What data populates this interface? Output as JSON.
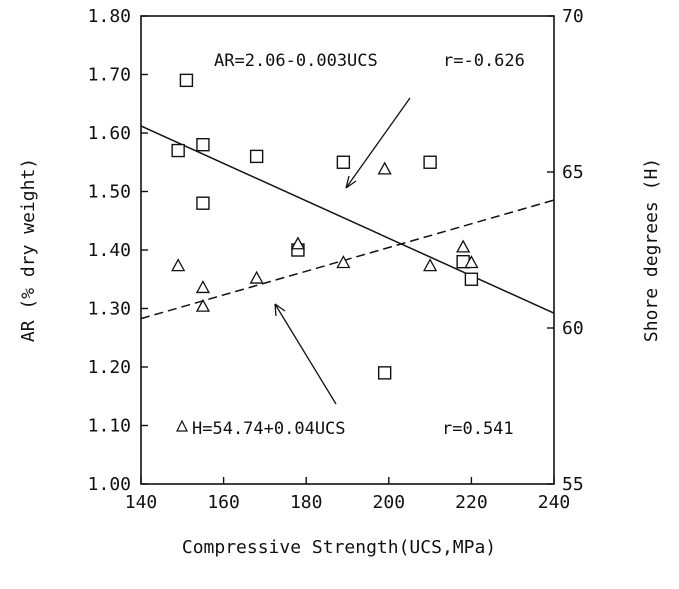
{
  "chart_data": {
    "type": "scatter",
    "title": "",
    "xlabel": "Compressive Strength(UCS,MPa)",
    "ylabel_left": "AR (% dry weight)",
    "ylabel_right": "Shore degrees (H)",
    "xlim": [
      140,
      240
    ],
    "ylim_left": [
      1.0,
      1.8
    ],
    "ylim_right": [
      55,
      70
    ],
    "x_ticks": [
      "140",
      "160",
      "180",
      "200",
      "220",
      "240"
    ],
    "y_left_ticks": [
      "1.00",
      "1.10",
      "1.20",
      "1.30",
      "1.40",
      "1.50",
      "1.60",
      "1.70",
      "1.80"
    ],
    "y_right_ticks": [
      "55",
      "60",
      "65",
      "70"
    ],
    "grid": false,
    "series": [
      {
        "marker": "square",
        "axis": "left",
        "points": [
          {
            "x": 149,
            "y": 1.57
          },
          {
            "x": 151,
            "y": 1.69
          },
          {
            "x": 155,
            "y": 1.58
          },
          {
            "x": 155,
            "y": 1.48
          },
          {
            "x": 168,
            "y": 1.56
          },
          {
            "x": 178,
            "y": 1.4
          },
          {
            "x": 189,
            "y": 1.55
          },
          {
            "x": 199,
            "y": 1.19
          },
          {
            "x": 210,
            "y": 1.55
          },
          {
            "x": 218,
            "y": 1.38
          },
          {
            "x": 220,
            "y": 1.35
          }
        ]
      },
      {
        "marker": "triangle",
        "axis": "right",
        "points": [
          {
            "x": 149,
            "y": 62.0
          },
          {
            "x": 155,
            "y": 61.3
          },
          {
            "x": 155,
            "y": 60.7
          },
          {
            "x": 168,
            "y": 61.6
          },
          {
            "x": 178,
            "y": 62.7
          },
          {
            "x": 189,
            "y": 62.1
          },
          {
            "x": 199,
            "y": 65.1
          },
          {
            "x": 210,
            "y": 62.0
          },
          {
            "x": 218,
            "y": 62.6
          },
          {
            "x": 220,
            "y": 62.1
          }
        ]
      }
    ],
    "fit_lines": [
      {
        "style": "solid",
        "axis": "left",
        "x": [
          140,
          240
        ],
        "y": [
          1.612,
          1.292
        ]
      },
      {
        "style": "dashed",
        "axis": "right",
        "x": [
          140,
          240
        ],
        "y": [
          60.3,
          64.1
        ]
      }
    ],
    "annotations": [
      {
        "id": "ar-eq",
        "text": "AR=2.06-0.003UCS"
      },
      {
        "id": "ar-r",
        "text": "r=-0.626"
      },
      {
        "id": "h-eq",
        "text": "H=54.74+0.04UCS"
      },
      {
        "id": "h-r",
        "text": "r=0.541"
      }
    ]
  }
}
